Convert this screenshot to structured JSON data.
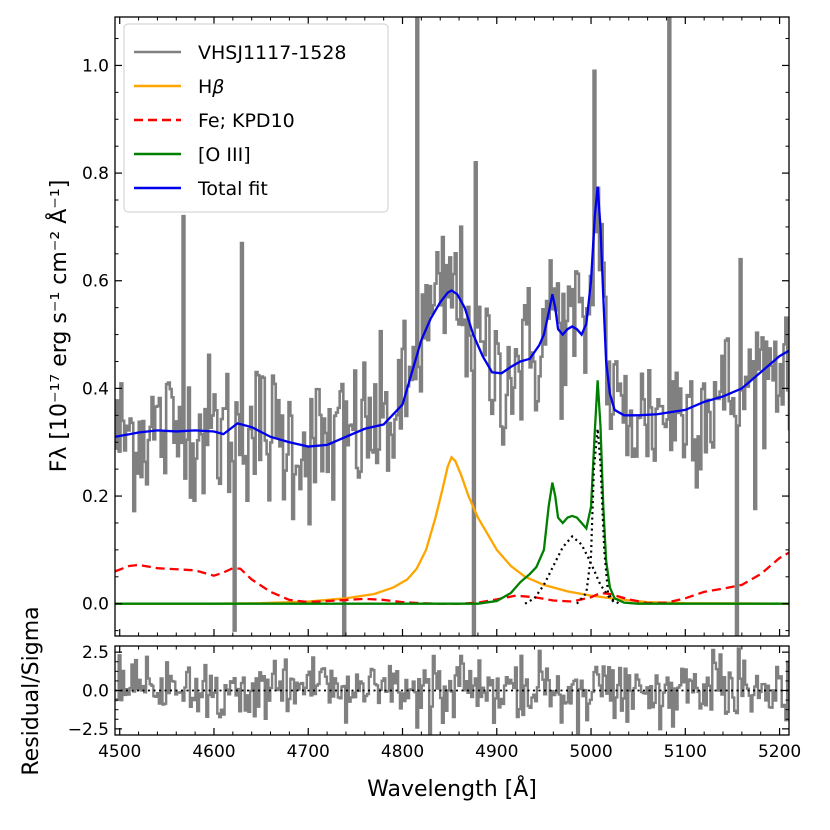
{
  "chart_data": [
    {
      "panel": "main",
      "type": "line",
      "xlabel": "",
      "ylabel": "Fλ [10⁻¹⁷ erg s⁻¹ cm⁻² Å⁻¹]",
      "xlim": [
        4495,
        5210
      ],
      "ylim": [
        -0.06,
        1.09
      ],
      "xticks": [
        4500,
        4600,
        4700,
        4800,
        4900,
        5000,
        5100,
        5200
      ],
      "yticks": [
        0.0,
        0.2,
        0.4,
        0.6,
        0.8,
        1.0
      ],
      "ytick_labels": [
        "0.0",
        "0.2",
        "0.4",
        "0.6",
        "0.8",
        "1.0"
      ],
      "legend": {
        "position": "top-left",
        "entries": [
          {
            "label": "VHSJ1117-1528",
            "color": "#808080",
            "style": "solid"
          },
          {
            "label": "H",
            "label_math": "β",
            "color": "#FFA500",
            "style": "solid"
          },
          {
            "label": "Fe; KPD10",
            "color": "#FF0000",
            "style": "dashed"
          },
          {
            "label": "[O III]",
            "color": "#008000",
            "style": "solid"
          },
          {
            "label": "Total fit",
            "color": "#0000EE",
            "style": "solid"
          }
        ]
      },
      "series": [
        {
          "name": "VHSJ1117-1528",
          "color": "#808080",
          "style": "steps",
          "x_range": [
            4495,
            5210
          ],
          "n_points": 370,
          "noise_sigma": 0.07,
          "follows": "Total fit",
          "spikes": [
            {
              "x": 4567,
              "y": 0.72
            },
            {
              "x": 4621,
              "y": -0.05
            },
            {
              "x": 4629,
              "y": 0.67
            },
            {
              "x": 4738,
              "y": -0.06
            },
            {
              "x": 4815,
              "y": 1.09
            },
            {
              "x": 4874,
              "y": -0.06
            },
            {
              "x": 4876,
              "y": 0.82
            },
            {
              "x": 5002,
              "y": 0.99
            },
            {
              "x": 5083,
              "y": 1.09
            },
            {
              "x": 5154,
              "y": -0.06
            },
            {
              "x": 5158,
              "y": 0.64
            }
          ]
        },
        {
          "name": "Hβ",
          "color": "#FFA500",
          "style": "solid",
          "x": [
            4495,
            4600,
            4650,
            4700,
            4740,
            4770,
            4790,
            4805,
            4815,
            4825,
            4835,
            4842,
            4848,
            4852,
            4856,
            4862,
            4870,
            4880,
            4890,
            4900,
            4915,
            4930,
            4950,
            4975,
            5000,
            5030,
            5060,
            5100,
            5210
          ],
          "y": [
            0,
            0,
            0.001,
            0.004,
            0.01,
            0.018,
            0.03,
            0.045,
            0.065,
            0.1,
            0.16,
            0.21,
            0.255,
            0.272,
            0.265,
            0.24,
            0.2,
            0.16,
            0.13,
            0.1,
            0.07,
            0.05,
            0.035,
            0.023,
            0.015,
            0.008,
            0.003,
            0.001,
            0
          ]
        },
        {
          "name": "Fe; KPD10",
          "color": "#FF0000",
          "style": "dashed",
          "x": [
            4495,
            4510,
            4520,
            4540,
            4560,
            4580,
            4600,
            4610,
            4620,
            4628,
            4640,
            4660,
            4680,
            4700,
            4720,
            4740,
            4760,
            4780,
            4800,
            4820,
            4840,
            4860,
            4880,
            4900,
            4920,
            4940,
            4960,
            4980,
            5000,
            5010,
            5020,
            5040,
            5060,
            5080,
            5100,
            5120,
            5140,
            5160,
            5180,
            5200,
            5210
          ],
          "y": [
            0.06,
            0.07,
            0.072,
            0.066,
            0.064,
            0.062,
            0.052,
            0.058,
            0.066,
            0.065,
            0.045,
            0.022,
            0.007,
            0.003,
            0.005,
            0.007,
            0.009,
            0.007,
            0.003,
            0.001,
            0,
            0,
            0.002,
            0.008,
            0.015,
            0.012,
            0.006,
            0.004,
            0.012,
            0.02,
            0.018,
            0.008,
            0.001,
            0.002,
            0.01,
            0.022,
            0.028,
            0.035,
            0.055,
            0.085,
            0.095
          ]
        },
        {
          "name": "[O III]",
          "color": "#008000",
          "style": "solid",
          "x": [
            4495,
            4880,
            4900,
            4915,
            4925,
            4935,
            4942,
            4950,
            4955,
            4959,
            4962,
            4965,
            4970,
            4975,
            4980,
            4985,
            4990,
            4995,
            5000,
            5004,
            5007,
            5010,
            5013,
            5016,
            5020,
            5025,
            5035,
            5050,
            5210
          ],
          "y": [
            0,
            0,
            0.005,
            0.02,
            0.04,
            0.055,
            0.068,
            0.1,
            0.18,
            0.225,
            0.2,
            0.16,
            0.15,
            0.16,
            0.163,
            0.16,
            0.15,
            0.14,
            0.18,
            0.32,
            0.415,
            0.33,
            0.18,
            0.08,
            0.03,
            0.01,
            0.002,
            0,
            0
          ]
        },
        {
          "name": "[O III] components",
          "color": "#000000",
          "style": "dotted",
          "segments": [
            {
              "x": [
                4930,
                4940,
                4950,
                4960,
                4970,
                4980,
                4990,
                5000,
                5010,
                5020,
                5030
              ],
              "y": [
                0,
                0.01,
                0.035,
                0.07,
                0.105,
                0.125,
                0.11,
                0.075,
                0.035,
                0.01,
                0
              ]
            },
            {
              "x": [
                4985,
                4995,
                5000,
                5003,
                5007,
                5010,
                5014,
                5018,
                5025
              ],
              "y": [
                0,
                0.02,
                0.09,
                0.25,
                0.325,
                0.26,
                0.1,
                0.02,
                0
              ]
            }
          ]
        },
        {
          "name": "Total fit",
          "color": "#0000EE",
          "style": "solid",
          "x": [
            4495,
            4520,
            4540,
            4560,
            4580,
            4600,
            4610,
            4625,
            4640,
            4660,
            4680,
            4700,
            4720,
            4740,
            4760,
            4780,
            4800,
            4810,
            4820,
            4830,
            4840,
            4848,
            4852,
            4858,
            4866,
            4875,
            4885,
            4895,
            4905,
            4915,
            4925,
            4935,
            4945,
            4950,
            4955,
            4959,
            4962,
            4965,
            4970,
            4975,
            4980,
            4985,
            4990,
            4995,
            5000,
            5004,
            5007,
            5010,
            5013,
            5016,
            5020,
            5025,
            5035,
            5050,
            5070,
            5100,
            5120,
            5140,
            5160,
            5180,
            5200,
            5210
          ],
          "y": [
            0.31,
            0.318,
            0.322,
            0.32,
            0.322,
            0.32,
            0.315,
            0.335,
            0.328,
            0.31,
            0.3,
            0.292,
            0.295,
            0.31,
            0.325,
            0.333,
            0.37,
            0.43,
            0.49,
            0.53,
            0.56,
            0.578,
            0.582,
            0.575,
            0.55,
            0.5,
            0.46,
            0.43,
            0.428,
            0.44,
            0.45,
            0.455,
            0.48,
            0.5,
            0.54,
            0.575,
            0.55,
            0.51,
            0.5,
            0.51,
            0.515,
            0.51,
            0.5,
            0.52,
            0.6,
            0.72,
            0.775,
            0.7,
            0.57,
            0.45,
            0.39,
            0.36,
            0.35,
            0.35,
            0.352,
            0.36,
            0.375,
            0.385,
            0.4,
            0.43,
            0.46,
            0.47
          ]
        }
      ]
    },
    {
      "panel": "residual",
      "type": "line",
      "xlabel": "Wavelength [Å]",
      "ylabel": "Residual/Sigma",
      "xlim": [
        4495,
        5210
      ],
      "ylim": [
        -2.9,
        2.9
      ],
      "xticks": [
        4500,
        4600,
        4700,
        4800,
        4900,
        5000,
        5100,
        5200
      ],
      "xtick_labels": [
        "4500",
        "4600",
        "4700",
        "4800",
        "4900",
        "5000",
        "5100",
        "5200"
      ],
      "yticks": [
        -2.5,
        0.0,
        2.5
      ],
      "ytick_labels": [
        "−2.5",
        "0.0",
        "2.5"
      ],
      "series": [
        {
          "name": "Residual",
          "color": "#808080",
          "style": "steps",
          "n_points": 370,
          "noise_sigma": 1.0
        },
        {
          "name": "Zero line",
          "color": "#000000",
          "style": "dotted",
          "x": [
            4495,
            5210
          ],
          "y": [
            0,
            0
          ]
        }
      ]
    }
  ]
}
